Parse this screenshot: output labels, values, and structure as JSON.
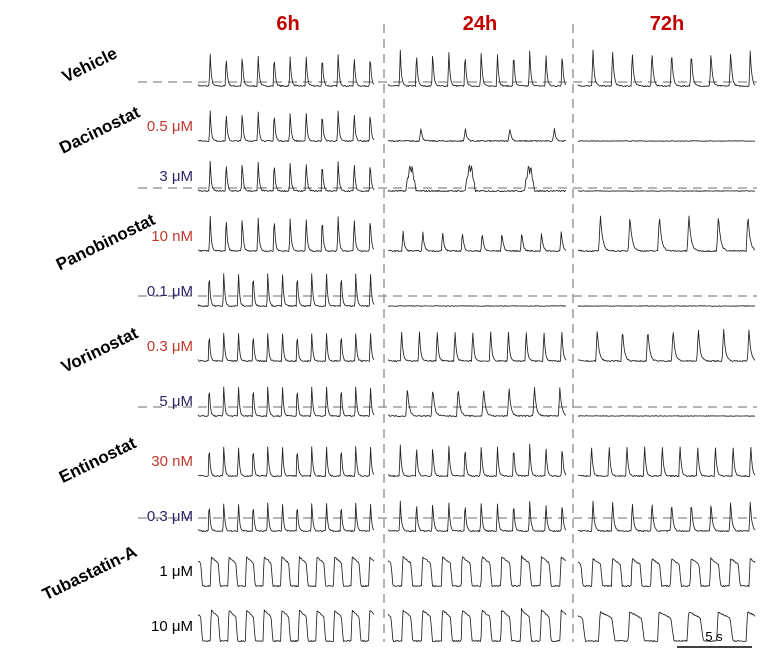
{
  "chart_data": {
    "type": "line",
    "title": "",
    "columns": [
      "6h",
      "24h",
      "72h"
    ],
    "groups": [
      {
        "drug": "Vehicle",
        "rows": [
          {
            "conc": "",
            "conc_color": "#000000",
            "traces": [
              {
                "shape": "sharp",
                "beats": 11,
                "amp": 0.9
              },
              {
                "shape": "sharp",
                "beats": 11,
                "amp": 1.0
              },
              {
                "shape": "sharp",
                "beats": 9,
                "amp": 1.0
              }
            ]
          }
        ]
      },
      {
        "drug": "Dacinostat",
        "rows": [
          {
            "conc": "0.5 μM",
            "conc_color": "#c0392b",
            "traces": [
              {
                "shape": "sharp",
                "beats": 11,
                "amp": 0.85
              },
              {
                "shape": "small",
                "beats": 4,
                "amp": 0.35
              },
              {
                "shape": "flat",
                "beats": 0,
                "amp": 0
              }
            ]
          },
          {
            "conc": "3 μM",
            "conc_color": "#2c2466",
            "traces": [
              {
                "shape": "sharp",
                "beats": 11,
                "amp": 0.85
              },
              {
                "shape": "burst",
                "beats": 3,
                "amp": 0.75
              },
              {
                "shape": "flat",
                "beats": 0,
                "amp": 0
              }
            ]
          }
        ]
      },
      {
        "drug": "Panobinostat",
        "rows": [
          {
            "conc": "10 nM",
            "conc_color": "#c0392b",
            "traces": [
              {
                "shape": "sharp",
                "beats": 11,
                "amp": 1.0
              },
              {
                "shape": "sharp",
                "beats": 9,
                "amp": 0.55
              },
              {
                "shape": "sharp",
                "beats": 6,
                "amp": 1.0
              }
            ]
          },
          {
            "conc": "0.1 μM",
            "conc_color": "#2c2466",
            "traces": [
              {
                "shape": "sharp",
                "beats": 12,
                "amp": 1.0
              },
              {
                "shape": "flat",
                "beats": 0,
                "amp": 0
              },
              {
                "shape": "flat",
                "beats": 0,
                "amp": 0
              }
            ]
          }
        ]
      },
      {
        "drug": "Vorinostat",
        "rows": [
          {
            "conc": "0.3 μM",
            "conc_color": "#c0392b",
            "traces": [
              {
                "shape": "sharp",
                "beats": 12,
                "amp": 0.85
              },
              {
                "shape": "sharp",
                "beats": 10,
                "amp": 0.9
              },
              {
                "shape": "sharp",
                "beats": 7,
                "amp": 0.9
              }
            ]
          },
          {
            "conc": "5 μM",
            "conc_color": "#2c2466",
            "traces": [
              {
                "shape": "sharp",
                "beats": 12,
                "amp": 0.9
              },
              {
                "shape": "sharp",
                "beats": 7,
                "amp": 0.8
              },
              {
                "shape": "flat",
                "beats": 0,
                "amp": 0
              }
            ]
          }
        ]
      },
      {
        "drug": "Entinostat",
        "rows": [
          {
            "conc": "30 nM",
            "conc_color": "#c0392b",
            "traces": [
              {
                "shape": "sharp",
                "beats": 12,
                "amp": 0.9
              },
              {
                "shape": "sharp",
                "beats": 11,
                "amp": 0.9
              },
              {
                "shape": "sharp",
                "beats": 10,
                "amp": 0.9
              }
            ]
          },
          {
            "conc": "0.3 μM",
            "conc_color": "#2c2466",
            "traces": [
              {
                "shape": "sharp",
                "beats": 12,
                "amp": 0.85
              },
              {
                "shape": "sharp",
                "beats": 11,
                "amp": 0.85
              },
              {
                "shape": "sharp",
                "beats": 9,
                "amp": 0.85
              }
            ]
          }
        ]
      },
      {
        "drug": "Tubastatin-A",
        "rows": [
          {
            "conc": "1 μM",
            "conc_color": "#000000",
            "traces": [
              {
                "shape": "wide",
                "beats": 10,
                "amp": 0.85
              },
              {
                "shape": "wide",
                "beats": 9,
                "amp": 0.85
              },
              {
                "shape": "wide",
                "beats": 9,
                "amp": 0.8
              }
            ]
          },
          {
            "conc": "10 μM",
            "conc_color": "#000000",
            "traces": [
              {
                "shape": "wide",
                "beats": 10,
                "amp": 0.9
              },
              {
                "shape": "wide",
                "beats": 9,
                "amp": 0.9
              },
              {
                "shape": "wide",
                "beats": 6,
                "amp": 0.85
              }
            ]
          }
        ]
      }
    ],
    "scale_bar": "5 s",
    "column_header_color": "#c00000",
    "trace_color": "#222222",
    "separator_color": "#8a8a8a"
  }
}
